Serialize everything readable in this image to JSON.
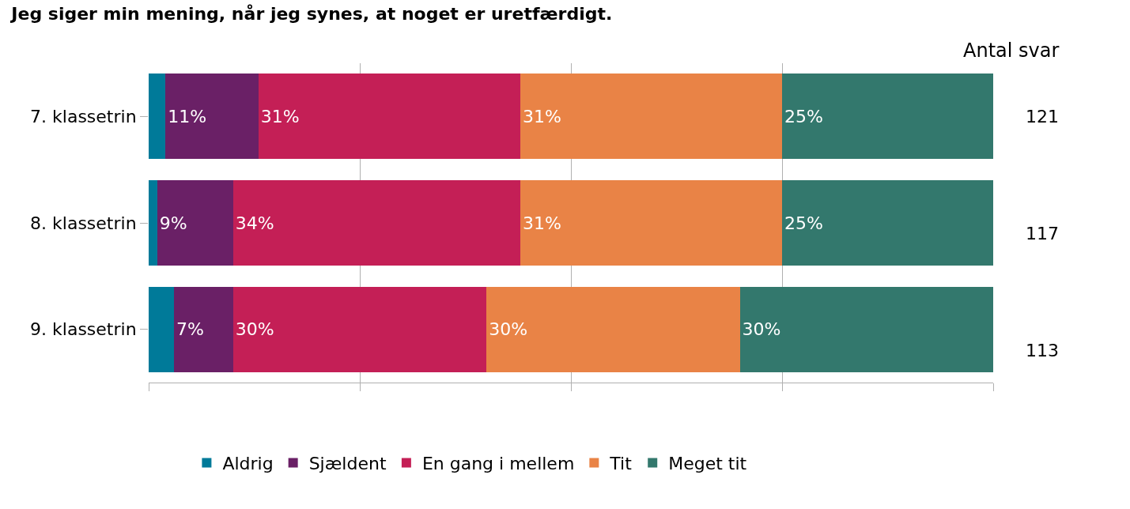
{
  "chart_data": {
    "type": "bar",
    "orientation": "horizontal",
    "stacked": true,
    "title": "Jeg siger min mening, når jeg synes, at noget er uretfærdigt.",
    "categories": [
      "7. klassetrin",
      "8. klassetrin",
      "9. klassetrin"
    ],
    "series": [
      {
        "name": "Aldrig",
        "color": "#007a99",
        "values": [
          2,
          1,
          3
        ],
        "value_labels": [
          null,
          null,
          null
        ]
      },
      {
        "name": "Sjældent",
        "color": "#6a2066",
        "values": [
          11,
          9,
          7
        ],
        "value_labels": [
          "11%",
          "9%",
          "7%"
        ]
      },
      {
        "name": "En gang i mellem",
        "color": "#c41f56",
        "values": [
          31,
          34,
          30
        ],
        "value_labels": [
          "31%",
          "34%",
          "30%"
        ]
      },
      {
        "name": "Tit",
        "color": "#e98346",
        "values": [
          31,
          31,
          30
        ],
        "value_labels": [
          "31%",
          "31%",
          "30%"
        ]
      },
      {
        "name": "Meget tit",
        "color": "#33786d",
        "values": [
          25,
          25,
          30
        ],
        "value_labels": [
          "25%",
          "25%",
          "30%"
        ]
      }
    ],
    "xlim": [
      0,
      100
    ],
    "xticks": [
      {
        "value": 0,
        "label": null
      },
      {
        "value": 25,
        "label": null
      },
      {
        "value": 50,
        "label": null
      },
      {
        "value": 75,
        "label": null
      },
      {
        "value": 100,
        "label": null
      }
    ],
    "grid": "x",
    "legend": "bottom",
    "annotations": [
      "Antal svar",
      "121",
      "117",
      "113"
    ]
  }
}
